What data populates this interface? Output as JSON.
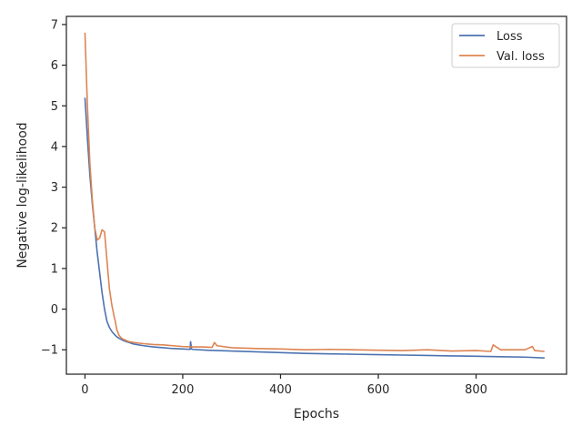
{
  "chart_data": {
    "type": "line",
    "title": "",
    "xlabel": "Epochs",
    "ylabel": "Negative log-likelihood",
    "xlim": [
      -38,
      985
    ],
    "ylim": [
      -1.6,
      7.2
    ],
    "xticks": [
      0,
      200,
      400,
      600,
      800
    ],
    "xtick_labels": [
      "0",
      "200",
      "400",
      "600",
      "800"
    ],
    "yticks": [
      -1,
      0,
      1,
      2,
      3,
      4,
      5,
      6,
      7
    ],
    "ytick_labels": [
      "−1",
      "0",
      "1",
      "2",
      "3",
      "4",
      "5",
      "6",
      "7"
    ],
    "grid": false,
    "legend_position": "top-right",
    "series": [
      {
        "name": "Loss",
        "color": "#4c72b0",
        "x": [
          0,
          5,
          10,
          15,
          20,
          25,
          30,
          35,
          40,
          45,
          50,
          55,
          60,
          65,
          70,
          80,
          90,
          100,
          120,
          140,
          160,
          180,
          200,
          215,
          216,
          218,
          220,
          250,
          300,
          350,
          400,
          450,
          500,
          550,
          600,
          650,
          700,
          750,
          800,
          850,
          900,
          940
        ],
        "values": [
          5.2,
          4.2,
          3.3,
          2.6,
          2.0,
          1.4,
          0.9,
          0.4,
          0.0,
          -0.3,
          -0.45,
          -0.55,
          -0.62,
          -0.68,
          -0.72,
          -0.78,
          -0.82,
          -0.86,
          -0.9,
          -0.93,
          -0.95,
          -0.97,
          -0.98,
          -0.99,
          -0.8,
          -0.98,
          -0.99,
          -1.01,
          -1.03,
          -1.05,
          -1.07,
          -1.09,
          -1.1,
          -1.11,
          -1.12,
          -1.13,
          -1.14,
          -1.15,
          -1.16,
          -1.17,
          -1.18,
          -1.2
        ]
      },
      {
        "name": "Val. loss",
        "color": "#dd8452",
        "x": [
          0,
          5,
          10,
          15,
          20,
          25,
          30,
          35,
          40,
          45,
          50,
          55,
          60,
          62,
          65,
          70,
          75,
          80,
          90,
          100,
          120,
          140,
          160,
          180,
          200,
          220,
          240,
          260,
          265,
          270,
          300,
          350,
          400,
          450,
          500,
          550,
          600,
          650,
          700,
          750,
          800,
          830,
          835,
          850,
          900,
          915,
          920,
          940
        ],
        "values": [
          6.8,
          5.0,
          3.6,
          2.7,
          2.0,
          1.7,
          1.75,
          1.95,
          1.9,
          1.2,
          0.5,
          0.1,
          -0.2,
          -0.3,
          -0.5,
          -0.65,
          -0.72,
          -0.75,
          -0.8,
          -0.82,
          -0.85,
          -0.87,
          -0.88,
          -0.9,
          -0.92,
          -0.93,
          -0.93,
          -0.94,
          -0.82,
          -0.9,
          -0.95,
          -0.97,
          -0.98,
          -1.0,
          -0.99,
          -1.0,
          -1.01,
          -1.02,
          -1.0,
          -1.03,
          -1.02,
          -1.04,
          -0.88,
          -1.0,
          -1.0,
          -0.92,
          -1.02,
          -1.04
        ]
      }
    ]
  }
}
